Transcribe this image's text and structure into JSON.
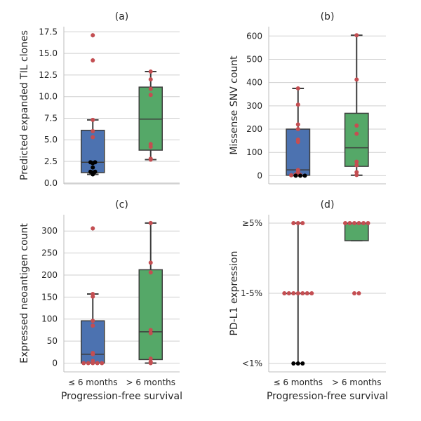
{
  "style": {
    "grid_color": "#cfcfcf",
    "spine_color": "#bdbdbd",
    "box_edge": "#3d3d3d",
    "low_box_color": "#4c72b0",
    "high_box_color": "#55a868",
    "point_color": "#c44e52",
    "black_point_color": "#000000"
  },
  "chart_data": [
    {
      "type": "box",
      "title": "(a)",
      "xlabel": "",
      "ylabel": "Predicted expanded TIL clones",
      "categories": [
        "≤ 6 months",
        "> 6 months"
      ],
      "show_xticklabels": false,
      "ylim": [
        -0.1,
        18.1
      ],
      "yticks": [
        0,
        2.5,
        5,
        7.5,
        10,
        12.5,
        15,
        17.5
      ],
      "ytick_labels": [
        "0.0",
        "2.5",
        "5.0",
        "7.5",
        "10.0",
        "12.5",
        "15.0",
        "17.5"
      ],
      "boxes": [
        {
          "q1": 1.2,
          "median": 2.4,
          "q3": 6.1,
          "whisker_low": 1.0,
          "whisker_high": 7.3,
          "outliers": [
            14.2,
            17.1
          ]
        },
        {
          "q1": 3.8,
          "median": 7.4,
          "q3": 11.1,
          "whisker_low": 2.7,
          "whisker_high": 12.9,
          "outliers": []
        }
      ],
      "points": [
        {
          "group": 0,
          "y": 17.1,
          "color": "red"
        },
        {
          "group": 0,
          "y": 14.2,
          "color": "red"
        },
        {
          "group": 0,
          "y": 7.3,
          "color": "red"
        },
        {
          "group": 0,
          "y": 6.0,
          "color": "red"
        },
        {
          "group": 0,
          "y": 5.3,
          "color": "red"
        },
        {
          "group": 0,
          "y": 2.4,
          "color": "black"
        },
        {
          "group": 0,
          "y": 2.4,
          "color": "black"
        },
        {
          "group": 0,
          "y": 2.3,
          "color": "black"
        },
        {
          "group": 0,
          "y": 1.8,
          "color": "black"
        },
        {
          "group": 0,
          "y": 1.3,
          "color": "black"
        },
        {
          "group": 0,
          "y": 1.3,
          "color": "black"
        },
        {
          "group": 0,
          "y": 1.2,
          "color": "black"
        },
        {
          "group": 0,
          "y": 1.0,
          "color": "black"
        },
        {
          "group": 1,
          "y": 12.9,
          "color": "red"
        },
        {
          "group": 1,
          "y": 12.0,
          "color": "red"
        },
        {
          "group": 1,
          "y": 10.9,
          "color": "red"
        },
        {
          "group": 1,
          "y": 10.2,
          "color": "red"
        },
        {
          "group": 1,
          "y": 4.5,
          "color": "red"
        },
        {
          "group": 1,
          "y": 4.2,
          "color": "red"
        },
        {
          "group": 1,
          "y": 2.8,
          "color": "red"
        },
        {
          "group": 1,
          "y": 2.7,
          "color": "red"
        }
      ]
    },
    {
      "type": "box",
      "title": "(b)",
      "xlabel": "",
      "ylabel": "Missense SNV count",
      "categories": [
        "≤ 6 months",
        "> 6 months"
      ],
      "show_xticklabels": false,
      "ylim": [
        -35,
        640
      ],
      "yticks": [
        0,
        100,
        200,
        300,
        400,
        500,
        600
      ],
      "ytick_labels": [
        "0",
        "100",
        "200",
        "300",
        "400",
        "500",
        "600"
      ],
      "boxes": [
        {
          "q1": 2,
          "median": 25,
          "q3": 200,
          "whisker_low": 0,
          "whisker_high": 375,
          "outliers": []
        },
        {
          "q1": 40,
          "median": 120,
          "q3": 268,
          "whisker_low": 2,
          "whisker_high": 603,
          "outliers": []
        }
      ],
      "points": [
        {
          "group": 0,
          "y": 375,
          "color": "red"
        },
        {
          "group": 0,
          "y": 305,
          "color": "red"
        },
        {
          "group": 0,
          "y": 220,
          "color": "red"
        },
        {
          "group": 0,
          "y": 200,
          "color": "red"
        },
        {
          "group": 0,
          "y": 155,
          "color": "red"
        },
        {
          "group": 0,
          "y": 145,
          "color": "red"
        },
        {
          "group": 0,
          "y": 25,
          "color": "red"
        },
        {
          "group": 0,
          "y": 15,
          "color": "red"
        },
        {
          "group": 0,
          "y": 10,
          "color": "red"
        },
        {
          "group": 0,
          "y": 8,
          "color": "red"
        },
        {
          "group": 0,
          "y": 5,
          "color": "red"
        },
        {
          "group": 0,
          "y": 3,
          "color": "red"
        },
        {
          "group": 0,
          "y": 2,
          "color": "red"
        },
        {
          "group": 0,
          "y": 0,
          "color": "black"
        },
        {
          "group": 0,
          "y": 0,
          "color": "black"
        },
        {
          "group": 0,
          "y": 0,
          "color": "black"
        },
        {
          "group": 1,
          "y": 603,
          "color": "red"
        },
        {
          "group": 1,
          "y": 413,
          "color": "red"
        },
        {
          "group": 1,
          "y": 215,
          "color": "red"
        },
        {
          "group": 1,
          "y": 180,
          "color": "red"
        },
        {
          "group": 1,
          "y": 60,
          "color": "red"
        },
        {
          "group": 1,
          "y": 45,
          "color": "red"
        },
        {
          "group": 1,
          "y": 15,
          "color": "red"
        },
        {
          "group": 1,
          "y": 3,
          "color": "red"
        }
      ]
    },
    {
      "type": "box",
      "title": "(c)",
      "xlabel": "Progression-free survival",
      "ylabel": "Expressed neoantigen count",
      "categories": [
        "≤ 6 months",
        "> 6 months"
      ],
      "show_xticklabels": true,
      "ylim": [
        -20,
        337
      ],
      "yticks": [
        0,
        50,
        100,
        150,
        200,
        250,
        300
      ],
      "ytick_labels": [
        "0",
        "50",
        "100",
        "150",
        "200",
        "250",
        "300"
      ],
      "boxes": [
        {
          "q1": 0,
          "median": 20,
          "q3": 96,
          "whisker_low": 0,
          "whisker_high": 157,
          "outliers": [
            306
          ]
        },
        {
          "q1": 8,
          "median": 71,
          "q3": 212,
          "whisker_low": 0,
          "whisker_high": 318,
          "outliers": []
        }
      ],
      "points": [
        {
          "group": 0,
          "y": 306,
          "color": "red"
        },
        {
          "group": 0,
          "y": 157,
          "color": "red"
        },
        {
          "group": 0,
          "y": 151,
          "color": "red"
        },
        {
          "group": 0,
          "y": 96,
          "color": "red"
        },
        {
          "group": 0,
          "y": 85,
          "color": "red"
        },
        {
          "group": 0,
          "y": 23,
          "color": "red"
        },
        {
          "group": 0,
          "y": 20,
          "color": "red"
        },
        {
          "group": 0,
          "y": 5,
          "color": "red"
        },
        {
          "group": 0,
          "y": 2,
          "color": "red"
        },
        {
          "group": 0,
          "y": 0,
          "color": "red"
        },
        {
          "group": 0,
          "y": 0,
          "color": "red"
        },
        {
          "group": 0,
          "y": 0,
          "color": "red"
        },
        {
          "group": 0,
          "y": 0,
          "color": "red"
        },
        {
          "group": 0,
          "y": 0,
          "color": "red"
        },
        {
          "group": 1,
          "y": 318,
          "color": "red"
        },
        {
          "group": 1,
          "y": 228,
          "color": "red"
        },
        {
          "group": 1,
          "y": 206,
          "color": "red"
        },
        {
          "group": 1,
          "y": 75,
          "color": "red"
        },
        {
          "group": 1,
          "y": 68,
          "color": "red"
        },
        {
          "group": 1,
          "y": 10,
          "color": "red"
        },
        {
          "group": 1,
          "y": 3,
          "color": "red"
        },
        {
          "group": 1,
          "y": 0,
          "color": "red"
        }
      ]
    },
    {
      "type": "box",
      "title": "(d)",
      "xlabel": "Progression-free survival",
      "ylabel": "PD-L1 expression",
      "categories": [
        "≤ 6 months",
        "> 6 months"
      ],
      "show_xticklabels": true,
      "ylim": [
        -0.12,
        2.12
      ],
      "yticks": [
        0,
        1,
        2
      ],
      "ytick_labels": [
        "<1%",
        "1-5%",
        "≥5%"
      ],
      "boxes": [
        {
          "q1": 1,
          "median": 1,
          "q3": 1,
          "whisker_low": 0,
          "whisker_high": 2,
          "outliers": []
        },
        {
          "q1": 1.75,
          "median": 2,
          "q3": 2,
          "whisker_low": 1.75,
          "whisker_high": 2,
          "outliers": []
        }
      ],
      "points": [
        {
          "group": 0,
          "y": 2,
          "color": "red"
        },
        {
          "group": 0,
          "y": 2,
          "color": "red"
        },
        {
          "group": 0,
          "y": 2,
          "color": "red"
        },
        {
          "group": 0,
          "y": 1,
          "color": "red"
        },
        {
          "group": 0,
          "y": 1,
          "color": "red"
        },
        {
          "group": 0,
          "y": 1,
          "color": "red"
        },
        {
          "group": 0,
          "y": 1,
          "color": "red"
        },
        {
          "group": 0,
          "y": 1,
          "color": "red"
        },
        {
          "group": 0,
          "y": 1,
          "color": "red"
        },
        {
          "group": 0,
          "y": 1,
          "color": "red"
        },
        {
          "group": 0,
          "y": 0,
          "color": "black"
        },
        {
          "group": 0,
          "y": 0,
          "color": "black"
        },
        {
          "group": 0,
          "y": 0,
          "color": "black"
        },
        {
          "group": 1,
          "y": 2,
          "color": "red"
        },
        {
          "group": 1,
          "y": 2,
          "color": "red"
        },
        {
          "group": 1,
          "y": 2,
          "color": "red"
        },
        {
          "group": 1,
          "y": 2,
          "color": "red"
        },
        {
          "group": 1,
          "y": 2,
          "color": "red"
        },
        {
          "group": 1,
          "y": 2,
          "color": "red"
        },
        {
          "group": 1,
          "y": 1,
          "color": "red"
        },
        {
          "group": 1,
          "y": 1,
          "color": "red"
        }
      ]
    }
  ]
}
